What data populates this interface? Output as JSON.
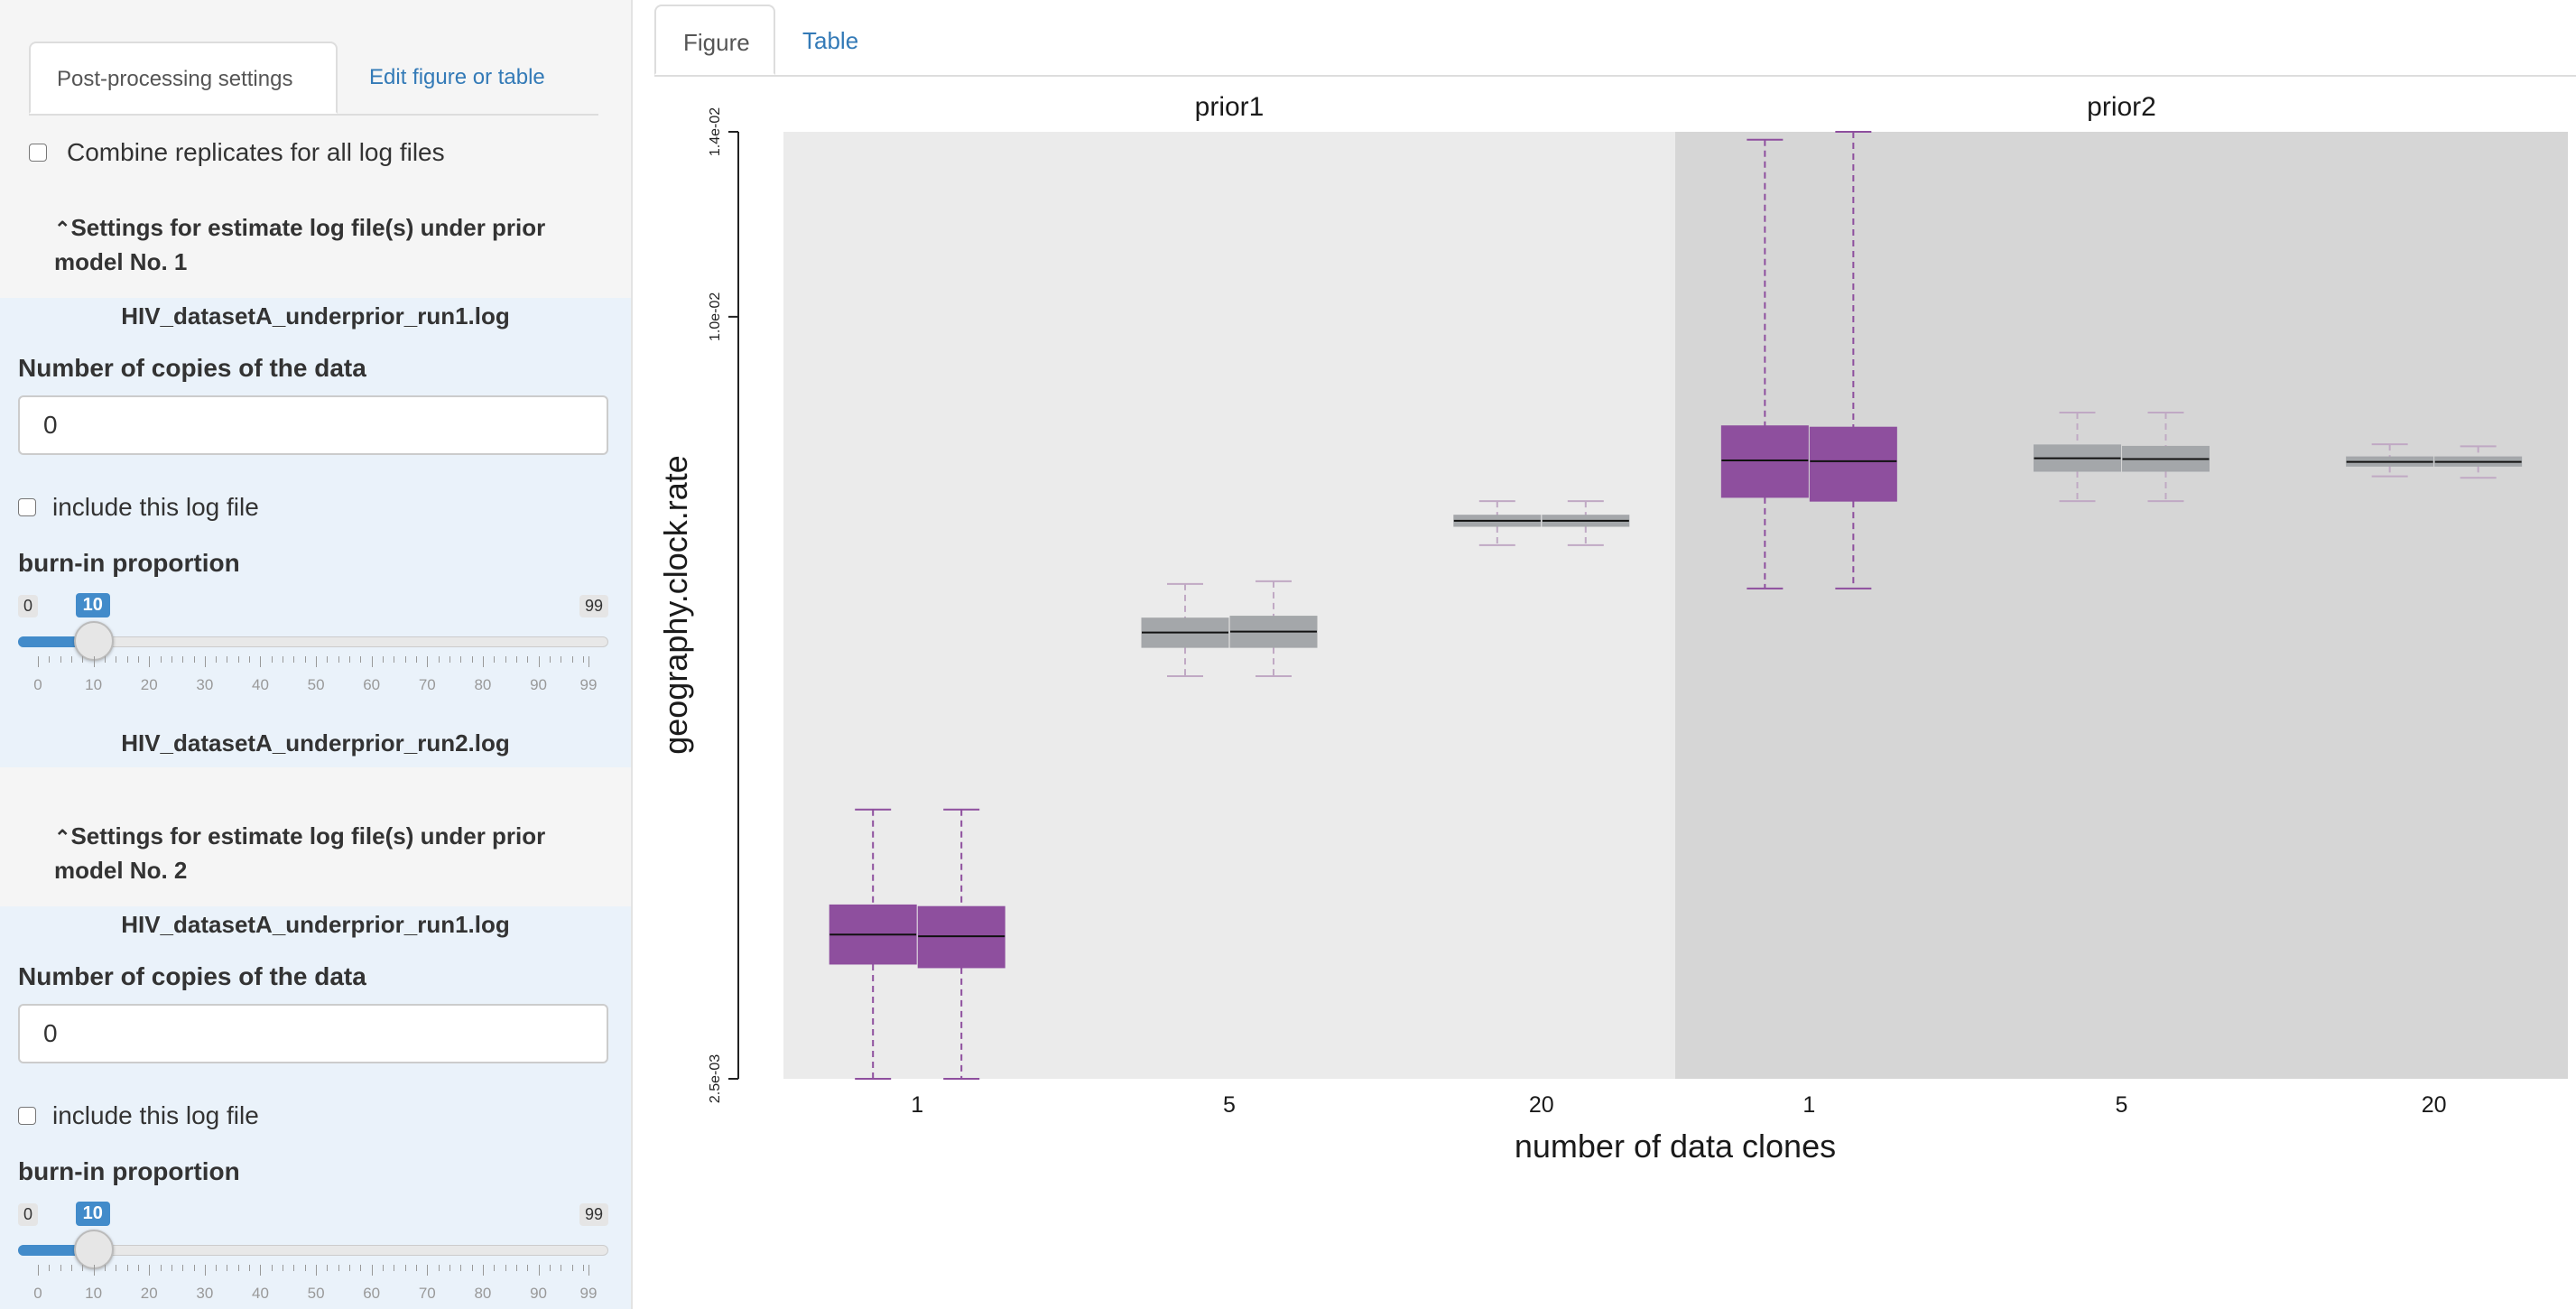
{
  "sidebar": {
    "tabs": [
      {
        "label": "Post-processing settings"
      },
      {
        "label": "Edit figure or table"
      }
    ],
    "combine_label": "Combine replicates for all log files",
    "sections": [
      {
        "header": "Settings for estimate log file(s) under prior model No. 1",
        "files": [
          {
            "name": "HIV_datasetA_underprior_run1.log",
            "copies_label": "Number of copies of the data",
            "copies_value": "0",
            "include_label": "include this log file",
            "burnin_label": "burn-in proportion",
            "slider": {
              "min": "0",
              "max": "99",
              "value": "10",
              "ticks": [
                "0",
                "10",
                "20",
                "30",
                "40",
                "50",
                "60",
                "70",
                "80",
                "90",
                "99"
              ]
            }
          },
          {
            "name": "HIV_datasetA_underprior_run2.log"
          }
        ]
      },
      {
        "header": "Settings for estimate log file(s) under prior model No. 2",
        "files": [
          {
            "name": "HIV_datasetA_underprior_run1.log",
            "copies_label": "Number of copies of the data",
            "copies_value": "0",
            "include_label": "include this log file",
            "burnin_label": "burn-in proportion",
            "slider": {
              "min": "0",
              "max": "99",
              "value": "10",
              "ticks": [
                "0",
                "10",
                "20",
                "30",
                "40",
                "50",
                "60",
                "70",
                "80",
                "90",
                "99"
              ]
            }
          }
        ]
      }
    ]
  },
  "main": {
    "tabs": [
      {
        "label": "Figure"
      },
      {
        "label": "Table"
      }
    ]
  },
  "chart_data": {
    "type": "boxplot",
    "ylabel": "geography.clock.rate",
    "xlabel": "number of data clones",
    "yscale": "log",
    "ylim": [
      0.0025,
      0.014
    ],
    "yticks": [
      {
        "value": 0.0025,
        "label": "2.5e-03"
      },
      {
        "value": 0.01,
        "label": "1.0e-02"
      },
      {
        "value": 0.014,
        "label": "1.4e-02"
      }
    ],
    "panel_colors": [
      "#ebebeb",
      "#d6d6d6"
    ],
    "panels": [
      {
        "title": "prior1",
        "categories": [
          "1",
          "5",
          "20"
        ],
        "boxes": [
          {
            "category": "1",
            "color": "#8e4f9e",
            "whisker_color": "#8e4f9e",
            "stats": [
              {
                "min": 0.0025,
                "q1": 0.00308,
                "median": 0.00325,
                "q3": 0.00343,
                "max": 0.00408
              },
              {
                "min": 0.0025,
                "q1": 0.00306,
                "median": 0.00324,
                "q3": 0.00342,
                "max": 0.00408
              }
            ]
          },
          {
            "category": "5",
            "color": "#a4a7aa",
            "whisker_color": "#c0a9c4",
            "stats": [
              {
                "min": 0.0052,
                "q1": 0.00548,
                "median": 0.00563,
                "q3": 0.00578,
                "max": 0.00615
              },
              {
                "min": 0.0052,
                "q1": 0.00548,
                "median": 0.00564,
                "q3": 0.0058,
                "max": 0.00618
              }
            ]
          },
          {
            "category": "20",
            "color": "#a4a7aa",
            "whisker_color": "#c0a9c4",
            "stats": [
              {
                "min": 0.0066,
                "q1": 0.00683,
                "median": 0.0069,
                "q3": 0.00697,
                "max": 0.00715
              },
              {
                "min": 0.0066,
                "q1": 0.00683,
                "median": 0.0069,
                "q3": 0.00697,
                "max": 0.00715
              }
            ]
          }
        ]
      },
      {
        "title": "prior2",
        "categories": [
          "1",
          "5",
          "20"
        ],
        "boxes": [
          {
            "category": "1",
            "color": "#8e4f9e",
            "whisker_color": "#8e4f9e",
            "stats": [
              {
                "min": 0.0061,
                "q1": 0.0072,
                "median": 0.0077,
                "q3": 0.0082,
                "max": 0.0138
              },
              {
                "min": 0.0061,
                "q1": 0.00715,
                "median": 0.00769,
                "q3": 0.00818,
                "max": 0.014
              }
            ]
          },
          {
            "category": "5",
            "color": "#a4a7aa",
            "whisker_color": "#c0a9c4",
            "stats": [
              {
                "min": 0.00715,
                "q1": 0.00755,
                "median": 0.00773,
                "q3": 0.00792,
                "max": 0.0084
              },
              {
                "min": 0.00715,
                "q1": 0.00755,
                "median": 0.00772,
                "q3": 0.0079,
                "max": 0.0084
              }
            ]
          },
          {
            "category": "20",
            "color": "#a4a7aa",
            "whisker_color": "#c0a9c4",
            "stats": [
              {
                "min": 0.00748,
                "q1": 0.00762,
                "median": 0.00768,
                "q3": 0.00775,
                "max": 0.00793
              },
              {
                "min": 0.00746,
                "q1": 0.00762,
                "median": 0.00768,
                "q3": 0.00775,
                "max": 0.0079
              }
            ]
          }
        ]
      }
    ]
  }
}
